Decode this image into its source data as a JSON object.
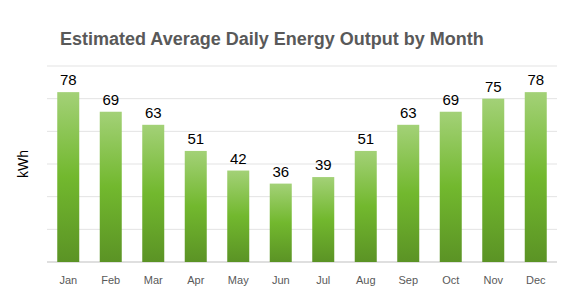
{
  "chart_data": {
    "type": "bar",
    "title": "Estimated Average Daily Energy Output by Month",
    "y_label": "kWh",
    "categories": [
      "Jan",
      "Feb",
      "Mar",
      "Apr",
      "May",
      "Jun",
      "Jul",
      "Aug",
      "Sep",
      "Oct",
      "Nov",
      "Dec"
    ],
    "values": [
      78,
      69,
      63,
      51,
      42,
      36,
      39,
      51,
      63,
      69,
      75,
      78
    ],
    "color": "#72b82e",
    "ylim": [
      0,
      90
    ],
    "yticks": [
      0,
      15,
      30,
      45,
      60,
      75,
      90
    ],
    "grid": true,
    "data_labels": true,
    "tick_labels": "x"
  }
}
